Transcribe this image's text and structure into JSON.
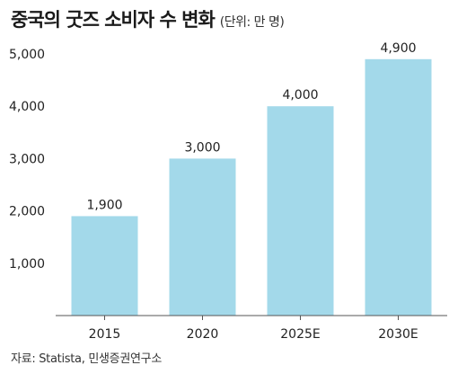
{
  "header": {
    "title": "중국의 굿즈 소비자 수 변화",
    "subtitle": "(단위: 만 명)"
  },
  "source": "자료: Statista, 민생증권연구소",
  "colors": {
    "bar": "#a3d9ea",
    "axis": "#555555",
    "text": "#222222"
  },
  "chart_data": {
    "type": "bar",
    "categories": [
      "2015",
      "2020",
      "2025E",
      "2030E"
    ],
    "values": [
      1900,
      3000,
      4000,
      4900
    ],
    "value_labels": [
      "1,900",
      "3,000",
      "4,000",
      "4,900"
    ],
    "yticks": [
      1000,
      2000,
      3000,
      4000,
      5000
    ],
    "ytick_labels": [
      "1,000",
      "2,000",
      "3,000",
      "4,000",
      "5,000"
    ],
    "ylim": [
      0,
      5000
    ],
    "grid": false,
    "legend": "none"
  }
}
